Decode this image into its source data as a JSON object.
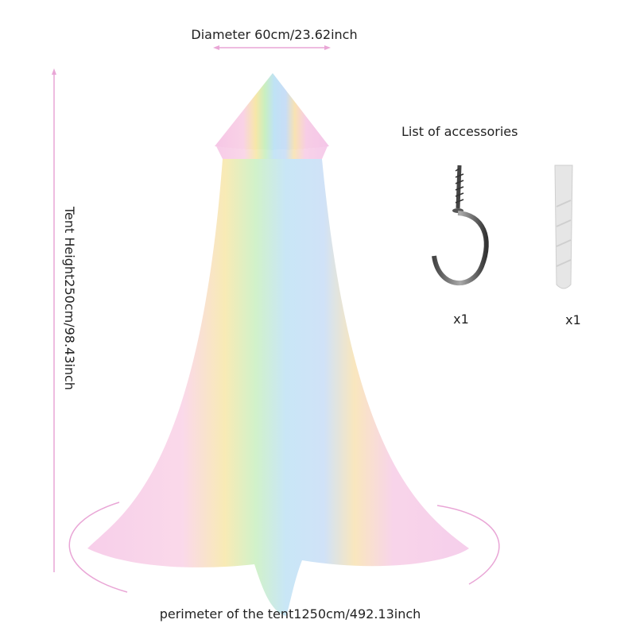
{
  "dimensions": {
    "diameter": "Diameter 60cm/23.62inch",
    "height": "Tent Height250cm/98.43inch",
    "perimeter": "perimeter of the tent1250cm/492.13inch"
  },
  "accessories": {
    "title": "List of accessories",
    "items": [
      {
        "quantity": "x1"
      },
      {
        "quantity": "x1"
      }
    ]
  }
}
